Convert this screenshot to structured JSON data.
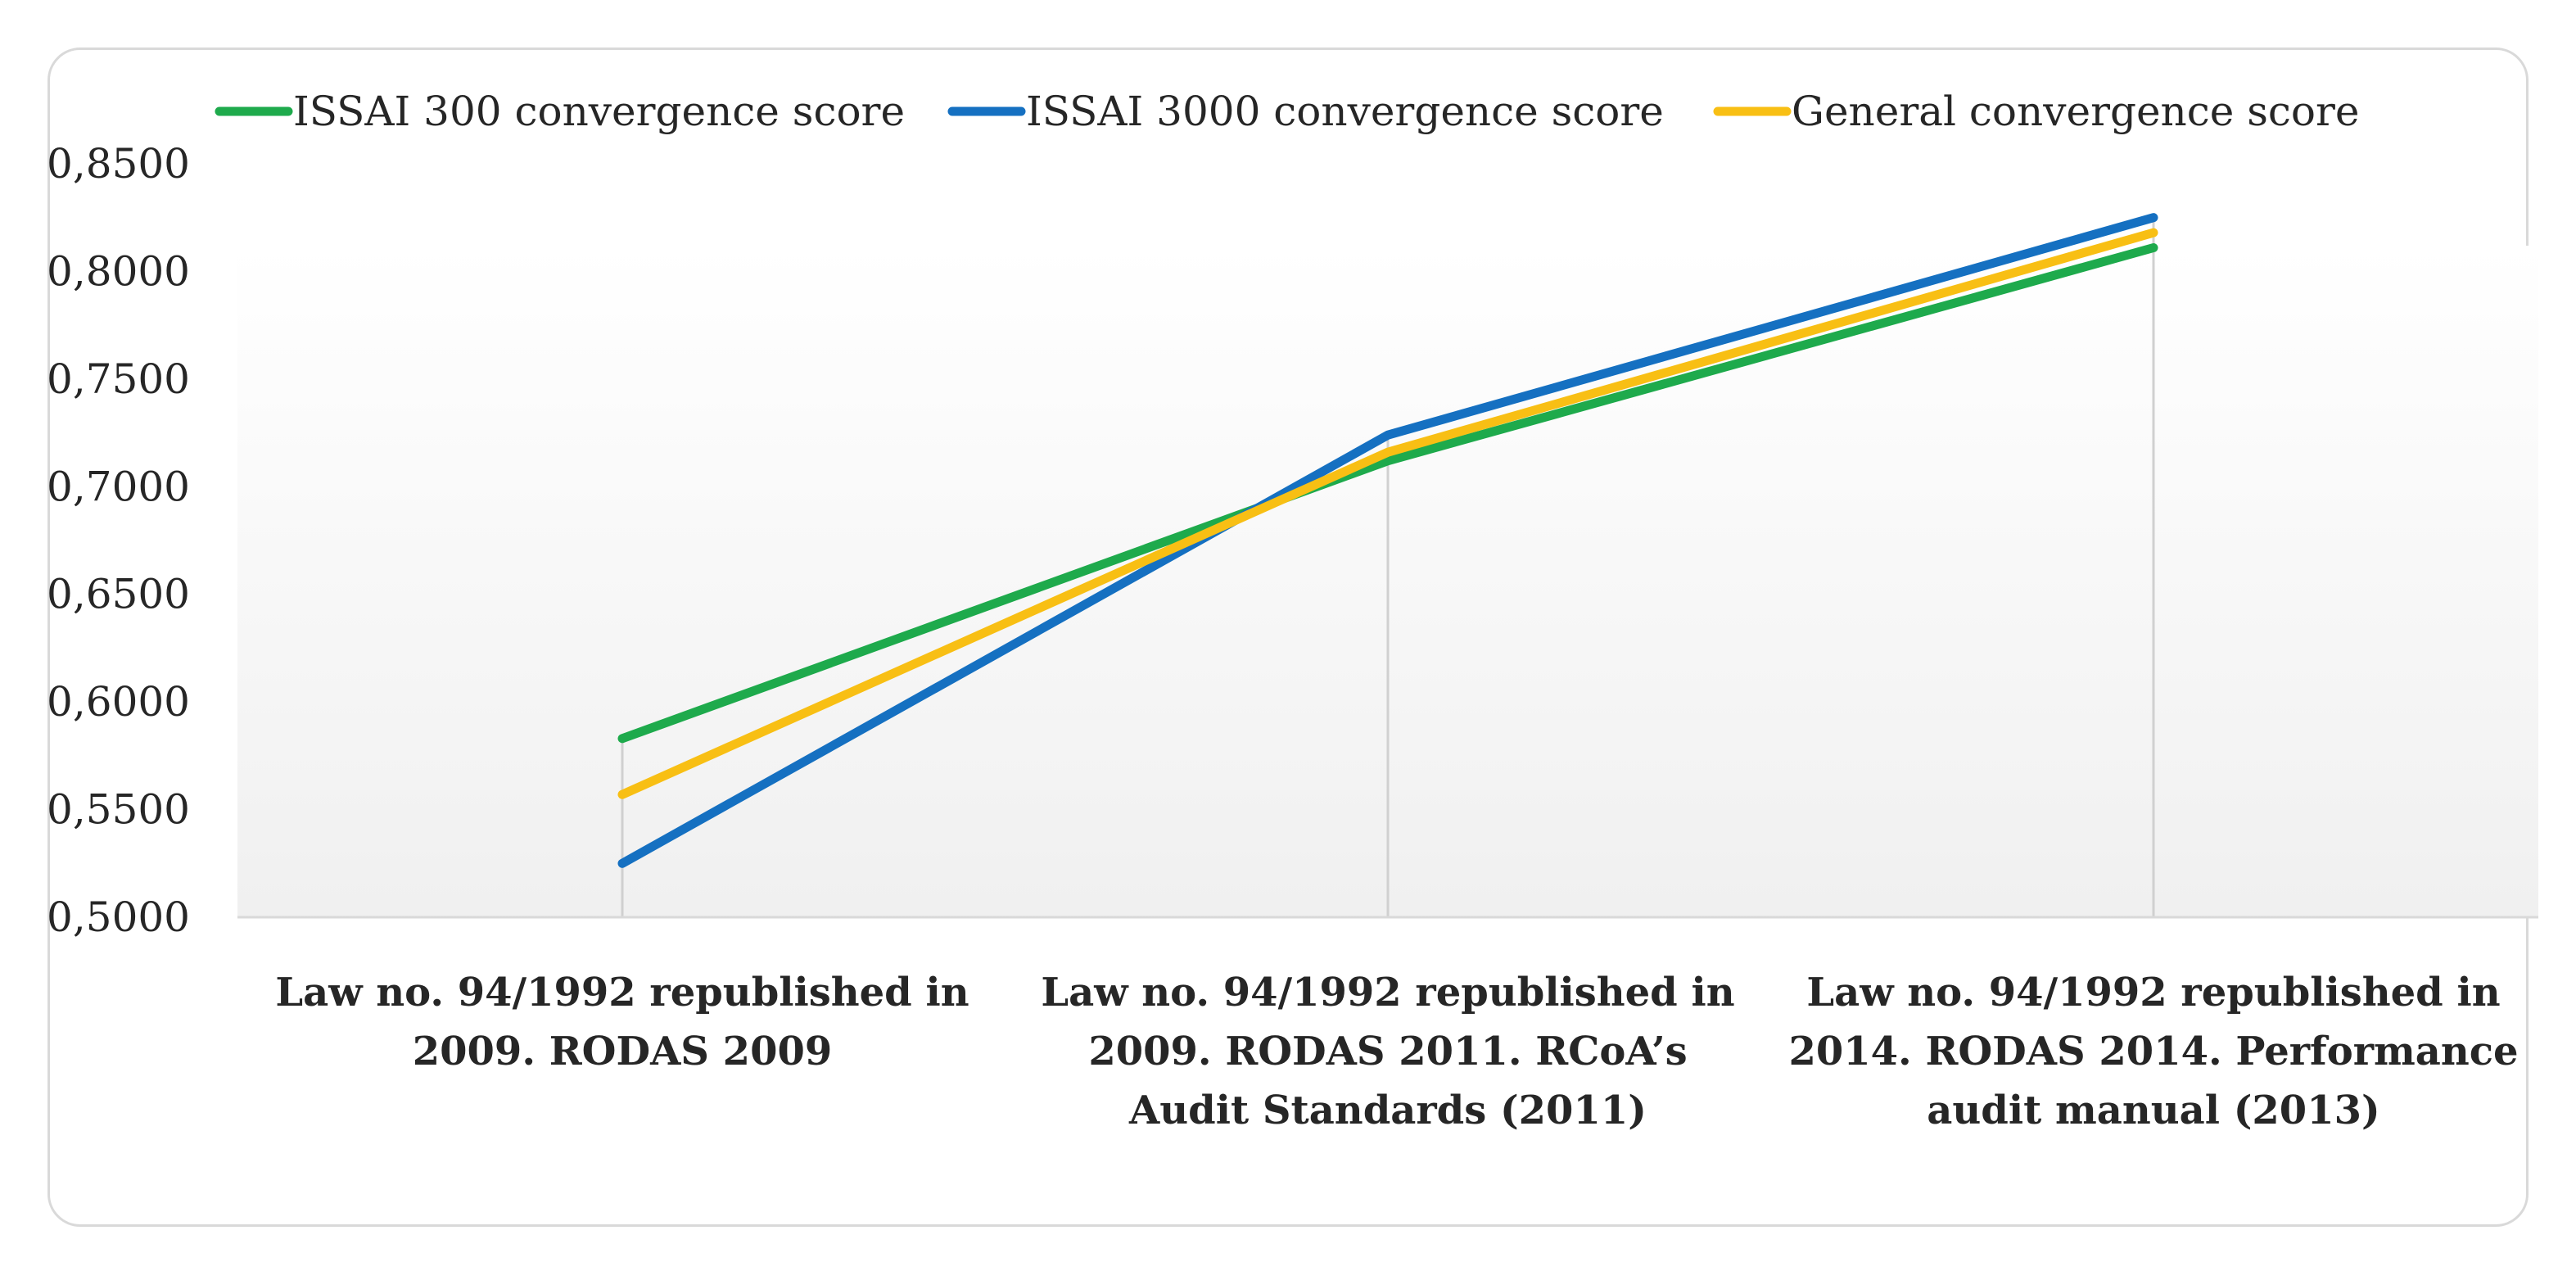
{
  "chart_data": {
    "type": "line",
    "title": "",
    "xlabel": "",
    "ylabel": "",
    "ylim": [
      0.5,
      0.85
    ],
    "yticks": [
      "0,5000",
      "0,5500",
      "0,6000",
      "0,6500",
      "0,7000",
      "0,7500",
      "0,8000",
      "0,8500"
    ],
    "categories": [
      [
        "Law no. 94/1992 republished in",
        "2009. RODAS 2009"
      ],
      [
        "Law no. 94/1992 republished in",
        "2009. RODAS 2011. RCoA’s",
        "Audit Standards (2011)"
      ],
      [
        "Law no. 94/1992 republished in",
        "2014. RODAS 2014. Performance",
        "audit manual (2013)"
      ]
    ],
    "series": [
      {
        "name": "ISSAI 300 convergence score",
        "color": "#1eaa4c",
        "values": [
          0.583,
          0.712,
          0.811
        ]
      },
      {
        "name": "ISSAI 3000 convergence score",
        "color": "#1570c1",
        "values": [
          0.525,
          0.724,
          0.825
        ]
      },
      {
        "name": "General convergence score",
        "color": "#f8bf14",
        "values": [
          0.557,
          0.716,
          0.818
        ]
      }
    ],
    "legend_position": "top",
    "grid": "vertical drop lines at categories"
  }
}
